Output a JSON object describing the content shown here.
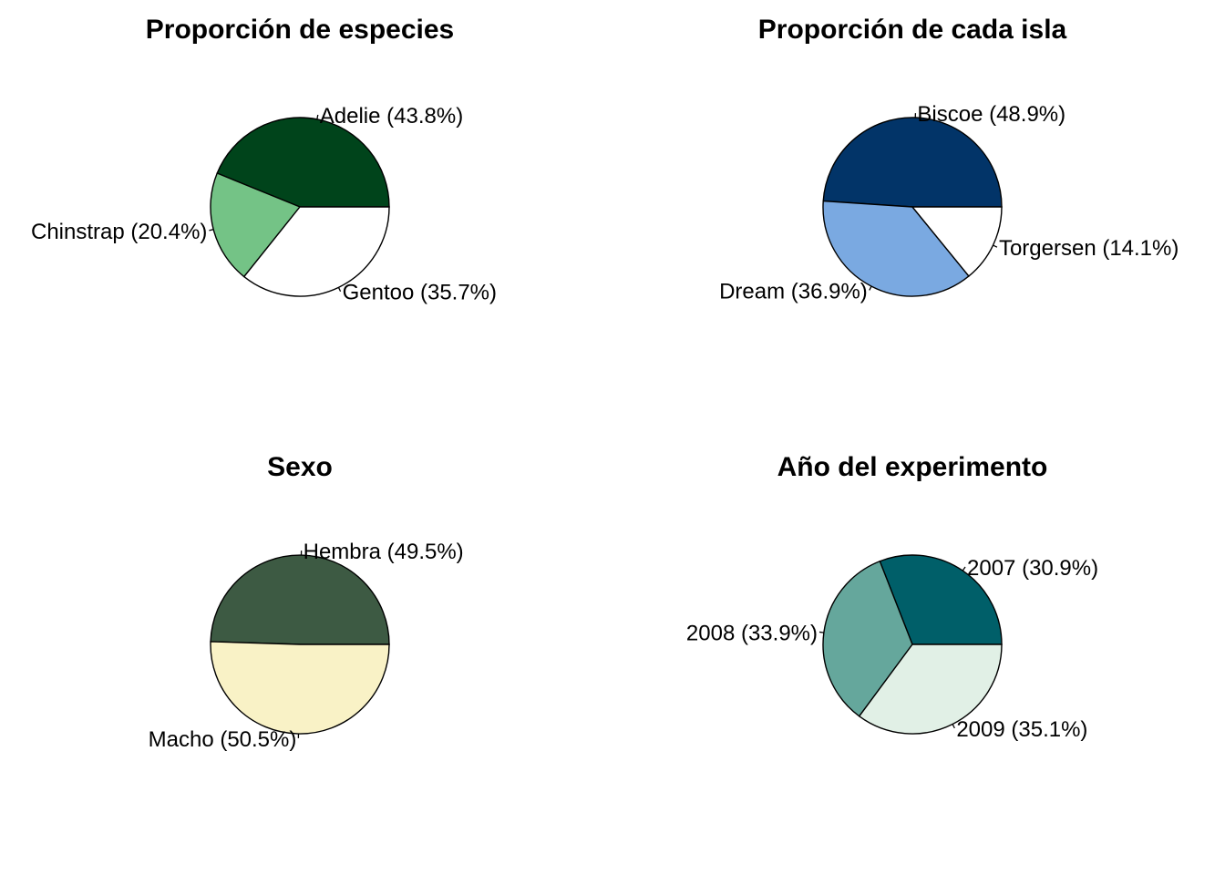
{
  "chart_data": [
    {
      "type": "pie",
      "title": "Proporción de especies",
      "slices": [
        {
          "category": "Adelie",
          "value": 43.8,
          "label": "Adelie (43.8%)",
          "color": "#00441b"
        },
        {
          "category": "Chinstrap",
          "value": 20.4,
          "label": "Chinstrap (20.4%)",
          "color": "#74c386"
        },
        {
          "category": "Gentoo",
          "value": 35.7,
          "label": "Gentoo (35.7%)",
          "color": "#ffffff"
        }
      ]
    },
    {
      "type": "pie",
      "title": "Proporción de cada isla",
      "slices": [
        {
          "category": "Biscoe",
          "value": 48.9,
          "label": "Biscoe (48.9%)",
          "color": "#023468"
        },
        {
          "category": "Dream",
          "value": 36.9,
          "label": "Dream (36.9%)",
          "color": "#7aa9e1"
        },
        {
          "category": "Torgersen",
          "value": 14.1,
          "label": "Torgersen (14.1%)",
          "color": "#ffffff"
        }
      ]
    },
    {
      "type": "pie",
      "title": "Sexo",
      "slices": [
        {
          "category": "Hembra",
          "value": 49.5,
          "label": "Hembra (49.5%)",
          "color": "#3d5a43"
        },
        {
          "category": "Macho",
          "value": 50.5,
          "label": "Macho (50.5%)",
          "color": "#f9f2c6"
        }
      ]
    },
    {
      "type": "pie",
      "title": "Año del experimento",
      "slices": [
        {
          "category": "2007",
          "value": 30.9,
          "label": "2007 (30.9%)",
          "color": "#005f69"
        },
        {
          "category": "2008",
          "value": 33.9,
          "label": "2008 (33.9%)",
          "color": "#65a79c"
        },
        {
          "category": "2009",
          "value": 35.1,
          "label": "2009 (35.1%)",
          "color": "#e1f0e6"
        }
      ]
    }
  ]
}
